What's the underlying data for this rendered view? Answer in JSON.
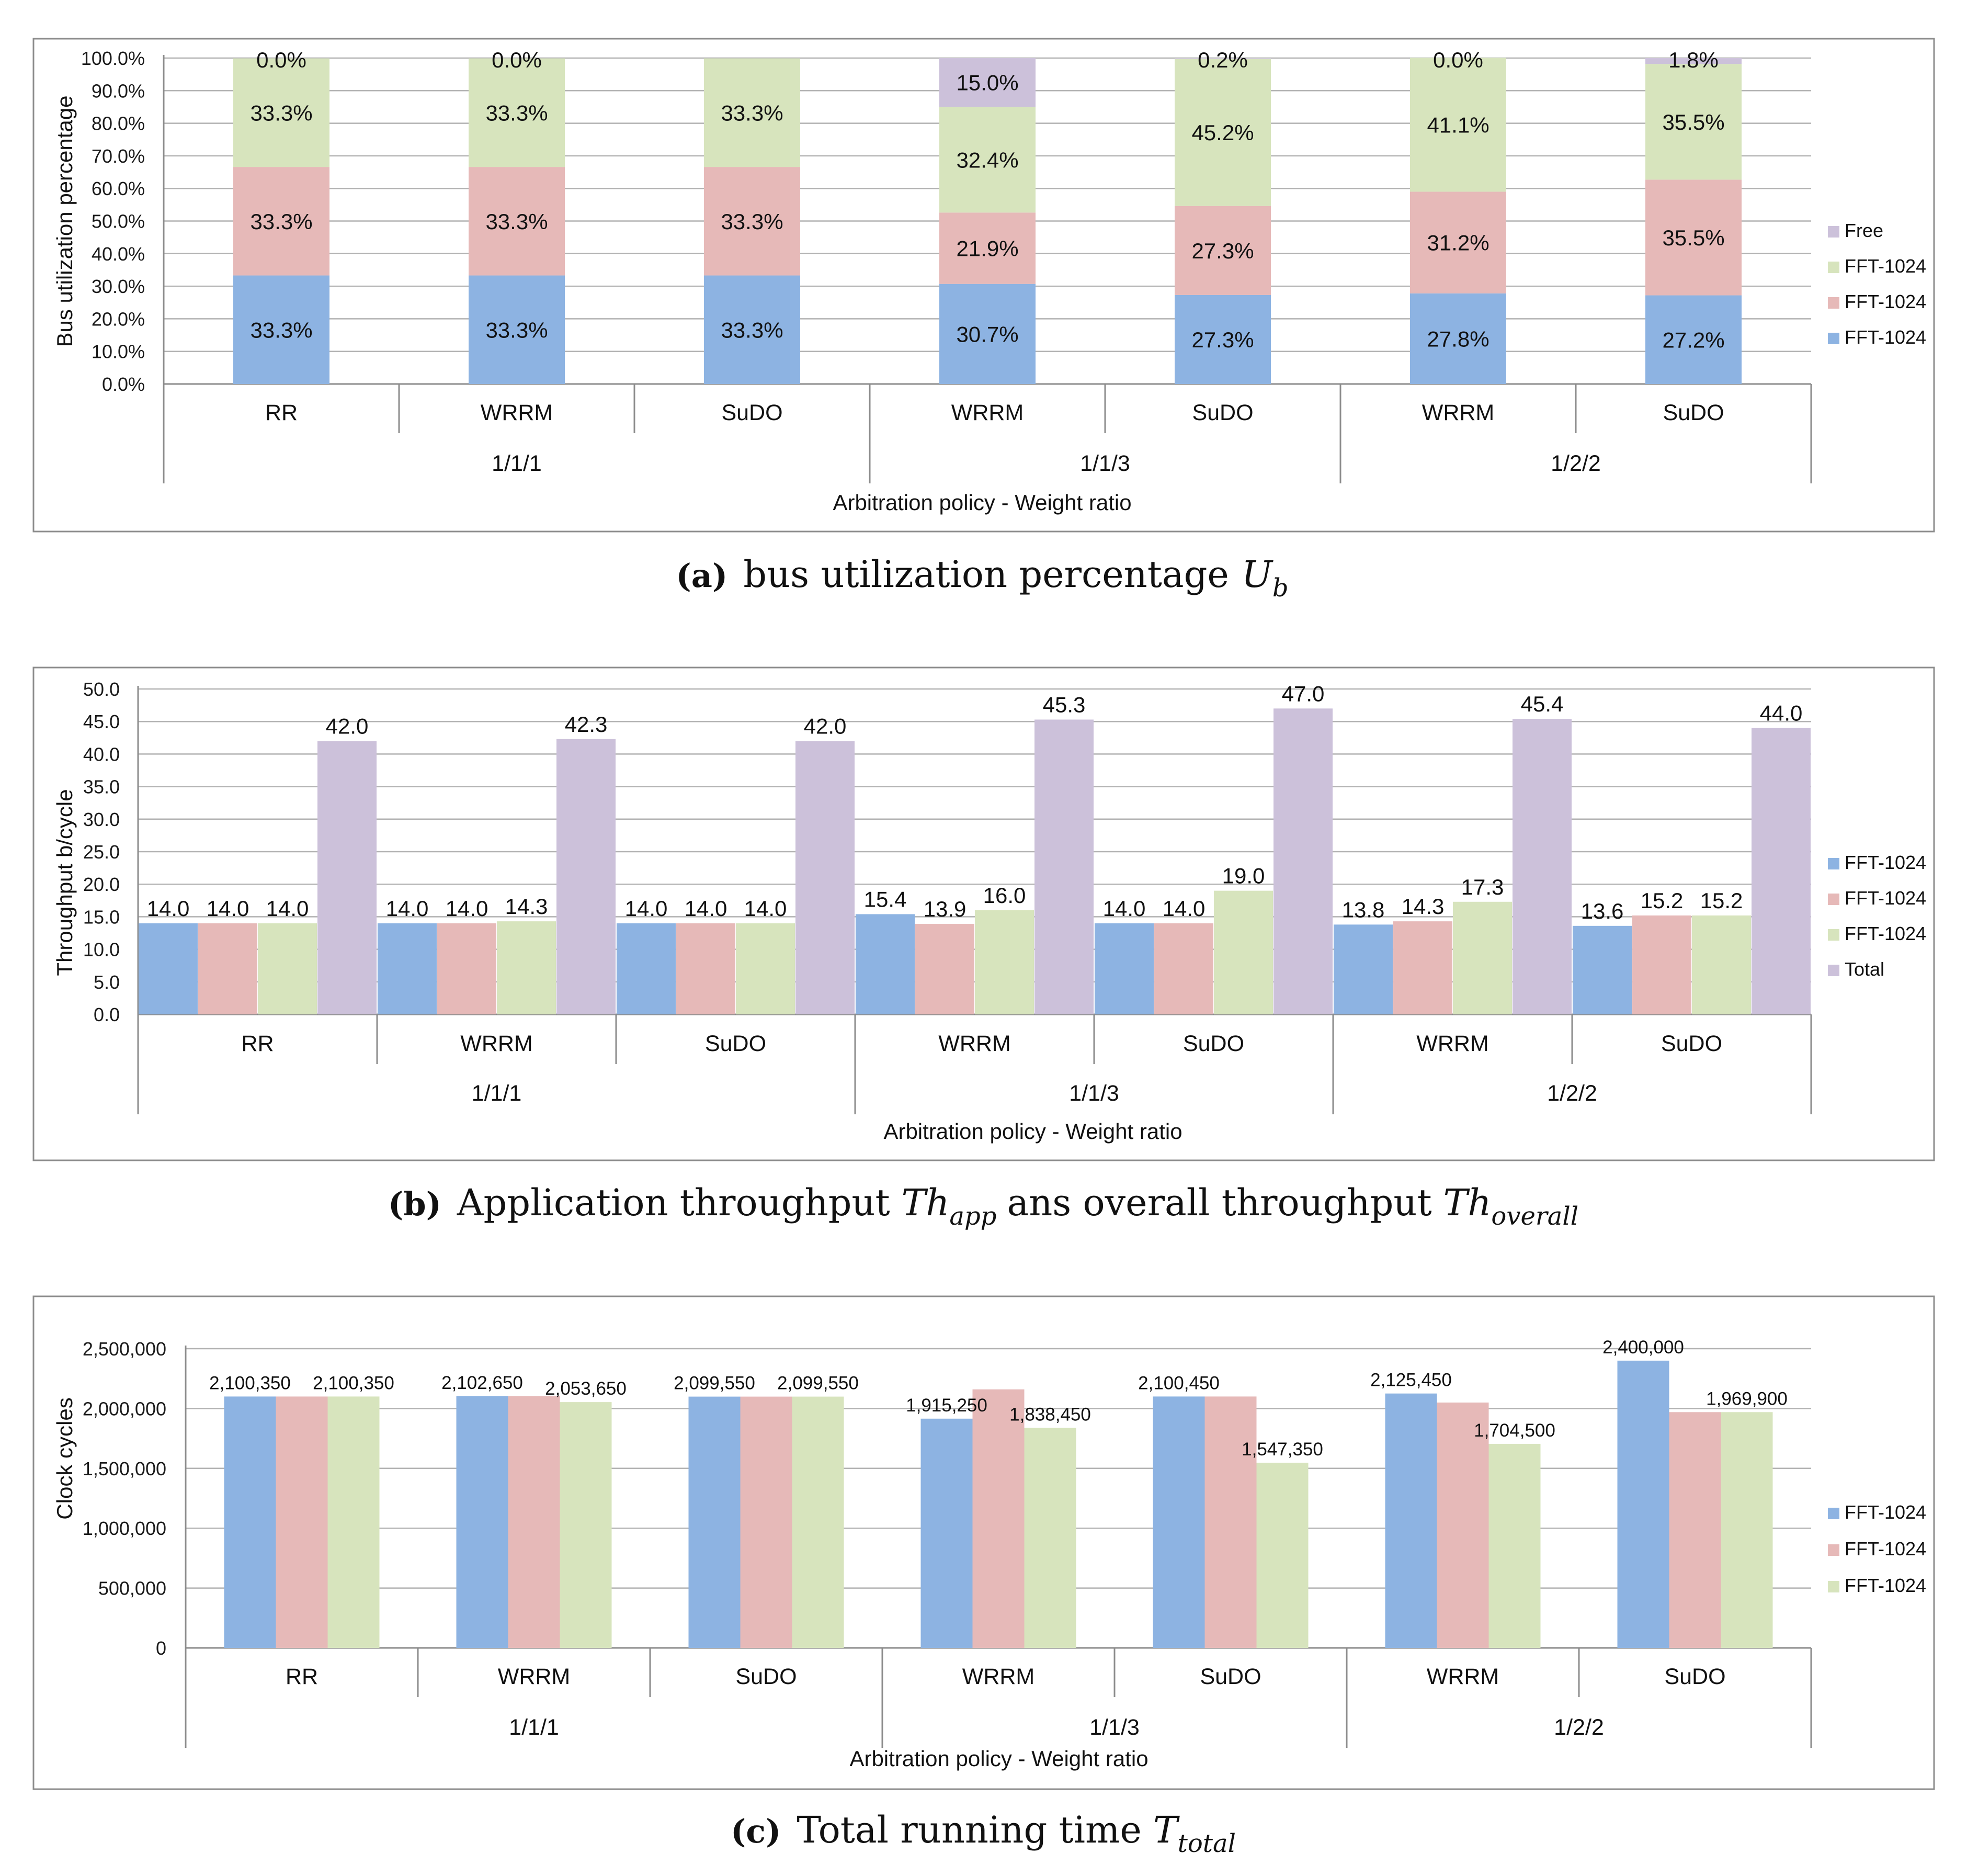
{
  "colors": {
    "blue": "#8db3e2",
    "red": "#e6b9b8",
    "green": "#d7e4bd",
    "purple": "#ccc1da"
  },
  "chart_data": [
    {
      "id": "a",
      "type": "bar",
      "stacked": true,
      "caption": {
        "label": "(a)",
        "text": "bus utilization percentage",
        "var": "U",
        "sub": "b"
      },
      "ylabel": "Bus utilization percentage",
      "xlabel": "Arbitration policy - Weight ratio",
      "ylim": [
        0,
        100
      ],
      "ytick_labels": [
        "0.0%",
        "10.0%",
        "20.0%",
        "30.0%",
        "40.0%",
        "50.0%",
        "60.0%",
        "70.0%",
        "80.0%",
        "90.0%",
        "100.0%"
      ],
      "categories": [
        "RR",
        "WRRM",
        "SuDO",
        "WRRM",
        "SuDO",
        "WRRM",
        "SuDO"
      ],
      "groups": [
        "1/1/1",
        "1/1/3",
        "1/2/2"
      ],
      "series": [
        {
          "name": "FFT-1024",
          "color": "blue",
          "values": [
            33.3,
            33.3,
            33.3,
            30.7,
            27.3,
            27.8,
            27.2
          ],
          "labels": [
            "33.3%",
            "33.3%",
            "33.3%",
            "30.7%",
            "27.3%",
            "27.8%",
            "27.2%"
          ]
        },
        {
          "name": "FFT-1024",
          "color": "red",
          "values": [
            33.3,
            33.3,
            33.3,
            21.9,
            27.3,
            31.2,
            35.5
          ],
          "labels": [
            "33.3%",
            "33.3%",
            "33.3%",
            "21.9%",
            "27.3%",
            "31.2%",
            "35.5%"
          ]
        },
        {
          "name": "FFT-1024",
          "color": "green",
          "values": [
            33.3,
            33.3,
            33.3,
            32.4,
            45.2,
            41.1,
            35.5
          ],
          "labels": [
            "33.3%",
            "33.3%",
            "33.3%",
            "32.4%",
            "45.2%",
            "41.1%",
            "35.5%"
          ]
        },
        {
          "name": "Free",
          "color": "purple",
          "values": [
            0.0,
            0.0,
            0.0,
            15.0,
            0.2,
            0.0,
            1.8
          ],
          "labels": [
            "0.0%",
            "0.0%",
            "",
            "15.0%",
            "0.2%",
            "0.0%",
            "1.8%"
          ]
        }
      ]
    },
    {
      "id": "b",
      "type": "bar",
      "caption": {
        "label": "(b)",
        "text": "Application throughput",
        "var": "Th",
        "sub": "app",
        "mid": "ans overall throughput",
        "var2": "Th",
        "sub2": "overall"
      },
      "ylabel": "Throughput b/cycle",
      "xlabel": "Arbitration policy - Weight ratio",
      "ylim": [
        0,
        50
      ],
      "ytick_labels": [
        "0.0",
        "5.0",
        "10.0",
        "15.0",
        "20.0",
        "25.0",
        "30.0",
        "35.0",
        "40.0",
        "45.0",
        "50.0"
      ],
      "categories": [
        "RR",
        "WRRM",
        "SuDO",
        "WRRM",
        "SuDO",
        "WRRM",
        "SuDO"
      ],
      "groups": [
        "1/1/1",
        "1/1/3",
        "1/2/2"
      ],
      "series": [
        {
          "name": "FFT-1024",
          "color": "blue",
          "values": [
            14.0,
            14.0,
            14.0,
            15.4,
            14.0,
            13.8,
            13.6
          ],
          "labels": [
            "14.0",
            "14.0",
            "14.0",
            "15.4",
            "14.0",
            "13.8",
            "13.6"
          ]
        },
        {
          "name": "FFT-1024",
          "color": "red",
          "values": [
            14.0,
            14.0,
            14.0,
            13.9,
            14.0,
            14.3,
            15.2
          ],
          "labels": [
            "14.0",
            "14.0",
            "14.0",
            "13.9",
            "14.0",
            "14.3",
            "15.2"
          ]
        },
        {
          "name": "FFT-1024",
          "color": "green",
          "values": [
            14.0,
            14.3,
            14.0,
            16.0,
            19.0,
            17.3,
            15.2
          ],
          "labels": [
            "14.0",
            "14.3",
            "14.0",
            "16.0",
            "19.0",
            "17.3",
            "15.2"
          ]
        },
        {
          "name": "Total",
          "color": "purple",
          "values": [
            42.0,
            42.3,
            42.0,
            45.3,
            47.0,
            45.4,
            44.0
          ],
          "labels": [
            "42.0",
            "42.3",
            "42.0",
            "45.3",
            "47.0",
            "45.4",
            "44.0"
          ]
        }
      ]
    },
    {
      "id": "c",
      "type": "bar",
      "caption": {
        "label": "(c)",
        "text": "Total running time",
        "var": "T",
        "sub": "total"
      },
      "ylabel": "Clock cycles",
      "xlabel": "Arbitration policy -  Weight ratio",
      "ylim": [
        0,
        2500000
      ],
      "ytick_labels": [
        "0",
        "500,000",
        "1,000,000",
        "1,500,000",
        "2,000,000",
        "2,500,000"
      ],
      "categories": [
        "RR",
        "WRRM",
        "SuDO",
        "WRRM",
        "SuDO",
        "WRRM",
        "SuDO"
      ],
      "groups": [
        "1/1/1",
        "1/1/3",
        "1/2/2"
      ],
      "series": [
        {
          "name": "FFT-1024",
          "color": "blue",
          "values": [
            2100350,
            2102650,
            2099550,
            1915250,
            2100450,
            2125450,
            2400000
          ],
          "labels": [
            "2,100,350",
            "2,102,650",
            "2,099,550",
            "1,915,250",
            "2,100,450",
            "2,125,450",
            "2,400,000"
          ]
        },
        {
          "name": "FFT-1024",
          "color": "red",
          "values": [
            2100350,
            2102650,
            2099550,
            2160000,
            2100450,
            2050000,
            1969900
          ],
          "labels": [
            "",
            "",
            "",
            "",
            "",
            "",
            ""
          ]
        },
        {
          "name": "FFT-1024",
          "color": "green",
          "values": [
            2100350,
            2053650,
            2099550,
            1838450,
            1547350,
            1704500,
            1969900
          ],
          "labels": [
            "2,100,350",
            "2,053,650",
            "2,099,550",
            "1,838,450",
            "1,547,350",
            "1,704,500",
            "1,969,900"
          ]
        }
      ]
    }
  ]
}
